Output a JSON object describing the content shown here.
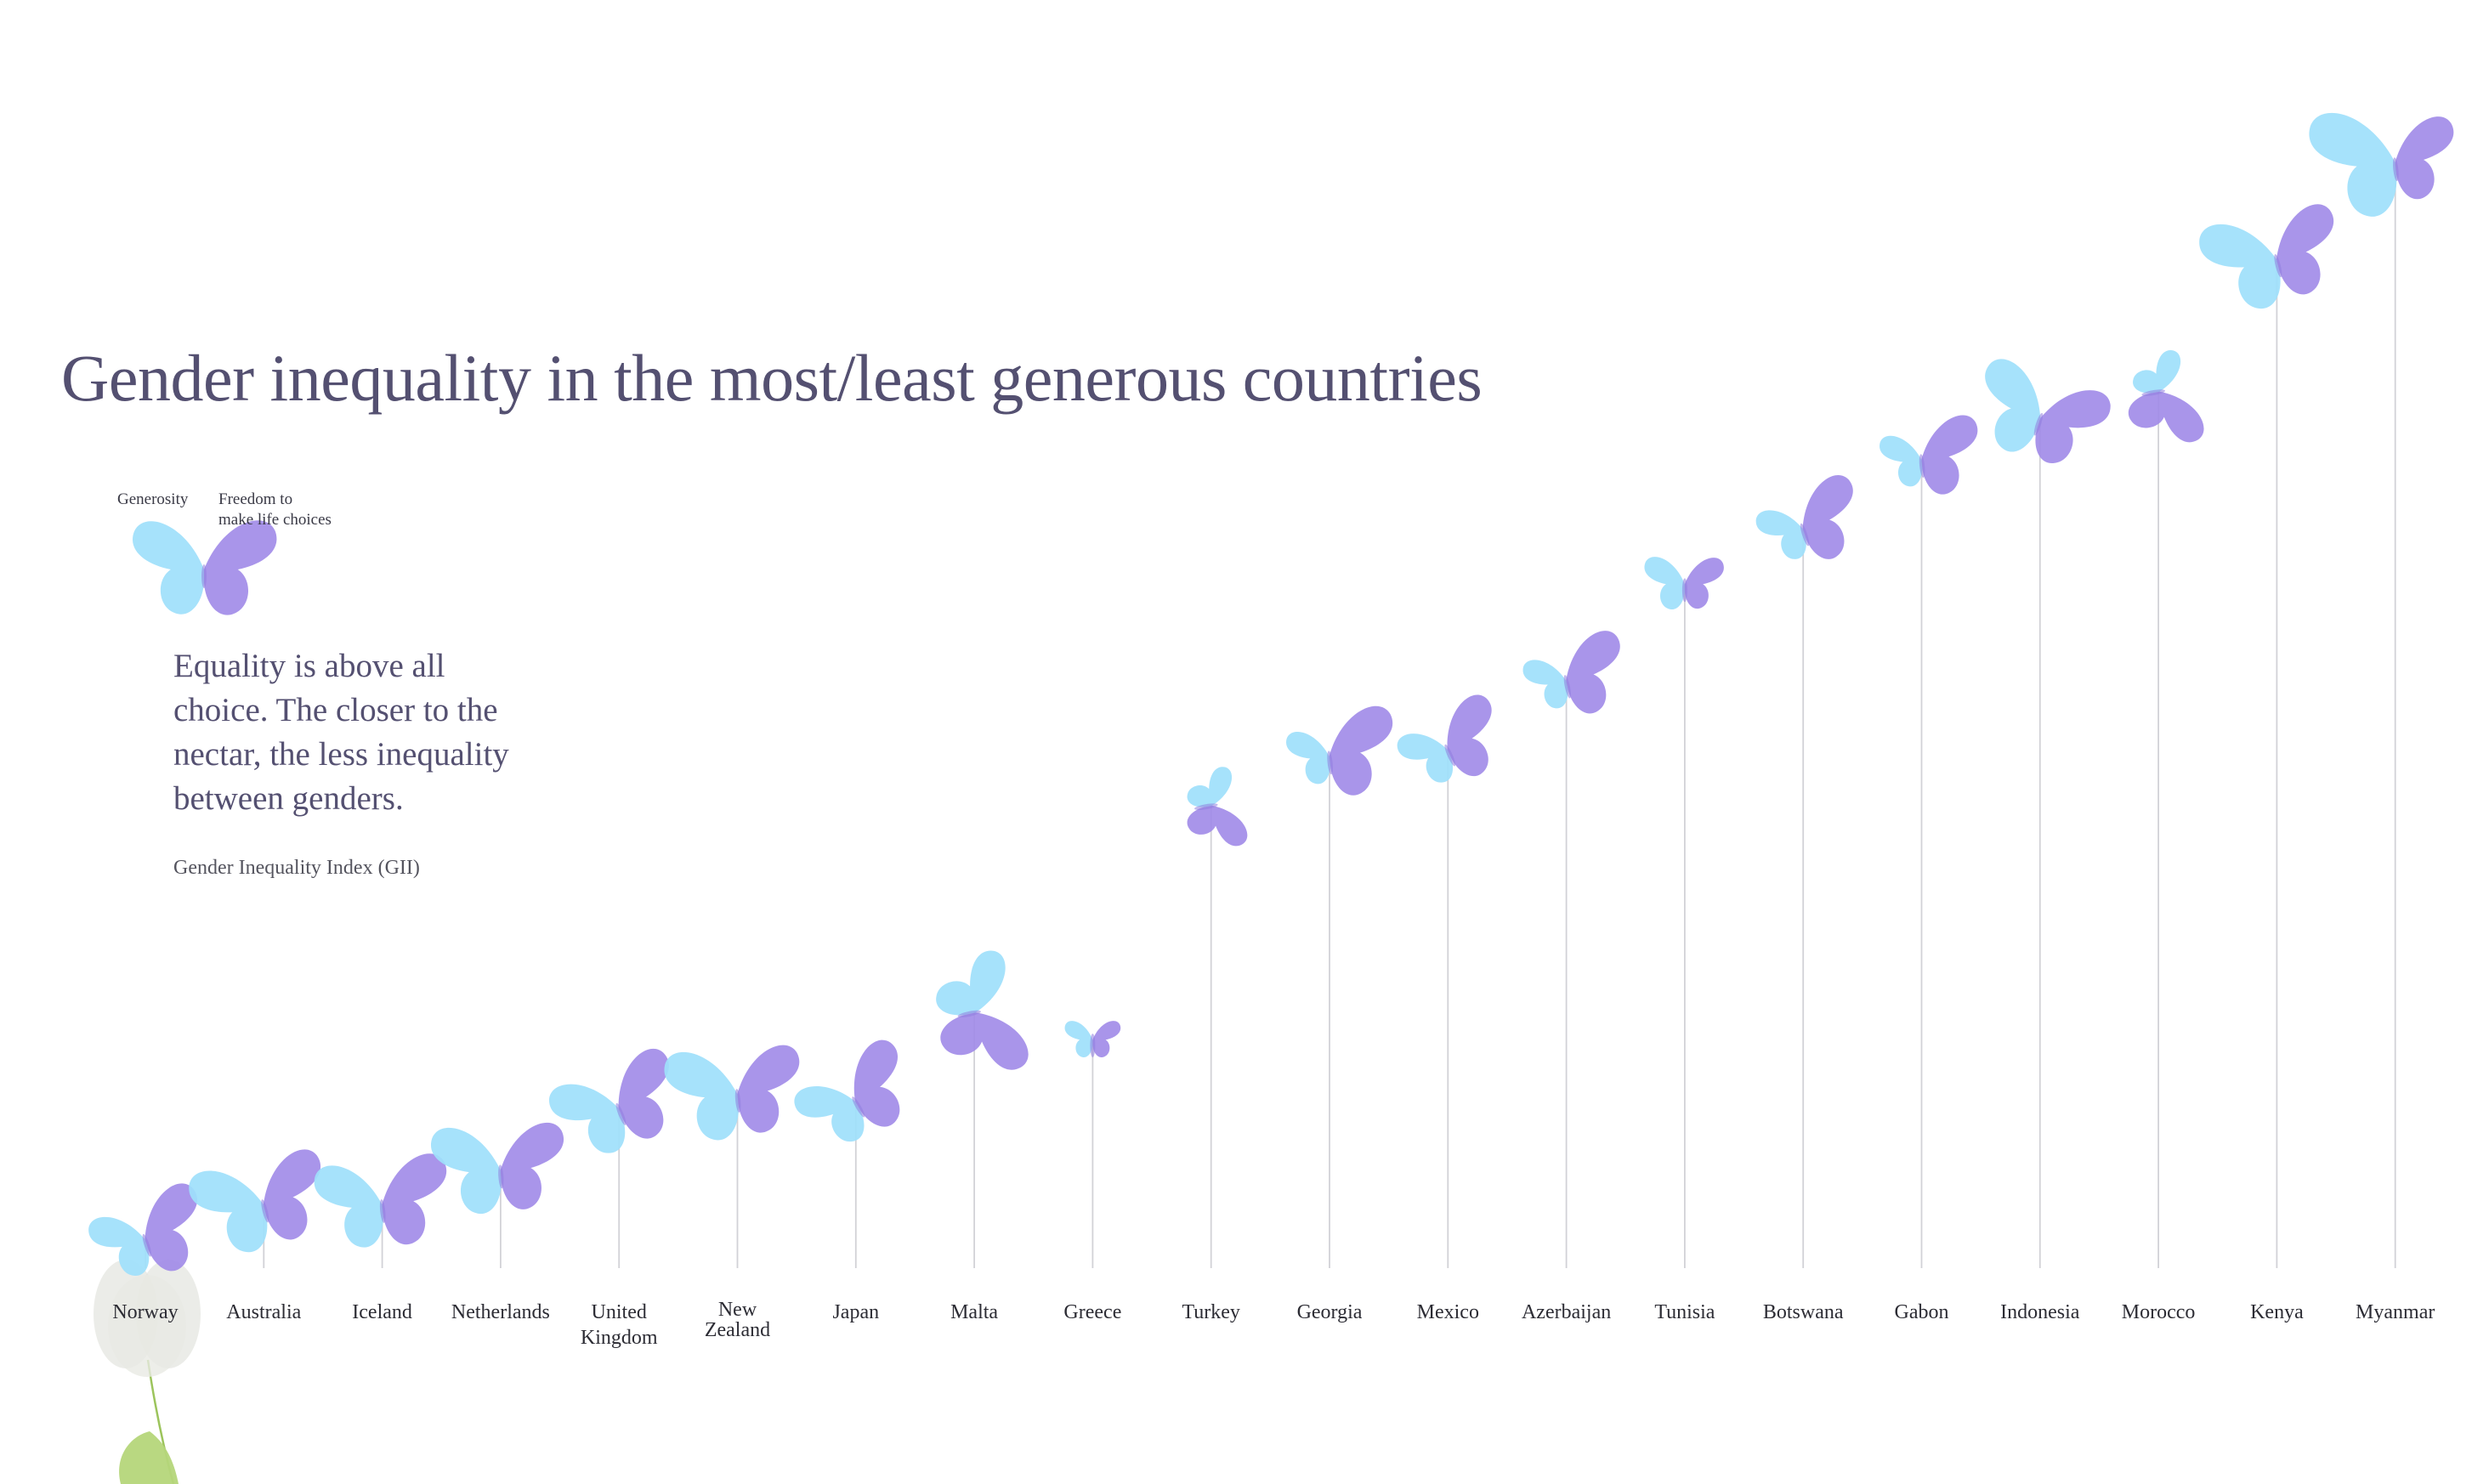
{
  "title": "Gender inequality in the most/least generous countries",
  "legend": {
    "generosity": "Generosity",
    "freedom_line1": "Freedom to",
    "freedom_line2": "make life choices"
  },
  "subtitle": "Equality is above all choice. The closer to the nectar, the less inequality between genders.",
  "gii_label": "Gender Inequality Index (GII)",
  "colors": {
    "generosity": "#9ee0fb",
    "freedom": "#a08ae8",
    "stem": "#d2d2d7",
    "title": "#545071",
    "leaf": "#b5d67a"
  },
  "chart_data": {
    "type": "scatter",
    "encoding": "y = Gender Inequality Index (higher = more inequality); left wing size = Generosity; right wing size = Freedom to make life choices (relative 0-1 estimates)",
    "countries": [
      "Norway",
      "Australia",
      "Iceland",
      "Netherlands",
      "United Kingdom",
      "New Zealand",
      "Japan",
      "Malta",
      "Greece",
      "Turkey",
      "Georgia",
      "Mexico",
      "Azerbaijan",
      "Tunisia",
      "Botswana",
      "Gabon",
      "Indonesia",
      "Morocco",
      "Kenya",
      "Myanmar"
    ],
    "gii": [
      0.04,
      0.09,
      0.09,
      0.14,
      0.23,
      0.25,
      0.24,
      0.37,
      0.33,
      0.67,
      0.74,
      0.75,
      0.85,
      0.99,
      1.07,
      1.17,
      1.23,
      1.27,
      1.46,
      1.6
    ],
    "generosity": [
      0.5,
      0.78,
      0.72,
      0.76,
      0.68,
      0.8,
      0.55,
      0.6,
      0.12,
      0.26,
      0.34,
      0.4,
      0.32,
      0.32,
      0.36,
      0.32,
      0.74,
      0.3,
      0.82,
      1.0
    ],
    "freedom": [
      0.68,
      0.72,
      0.76,
      0.72,
      0.7,
      0.72,
      0.66,
      0.7,
      0.12,
      0.38,
      0.74,
      0.6,
      0.64,
      0.3,
      0.64,
      0.62,
      0.7,
      0.56,
      0.72,
      0.66
    ],
    "labels": [
      [
        "Norway"
      ],
      [
        "Australia"
      ],
      [
        "Iceland"
      ],
      [
        "Netherlands"
      ],
      [
        "United",
        "Kingdom"
      ],
      [
        "New",
        "Zealand"
      ],
      [
        "Japan"
      ],
      [
        "Malta"
      ],
      [
        "Greece"
      ],
      [
        "Turkey"
      ],
      [
        "Georgia"
      ],
      [
        "Mexico"
      ],
      [
        "Azerbaijan"
      ],
      [
        "Tunisia"
      ],
      [
        "Botswana"
      ],
      [
        "Gabon"
      ],
      [
        "Indonesia"
      ],
      [
        "Morocco"
      ],
      [
        "Kenya"
      ],
      [
        "Myanmar"
      ]
    ],
    "small_label_countries": [
      "New Zealand"
    ],
    "ylabel": "Gender Inequality Index (GII)",
    "ylim": [
      0,
      1.7
    ]
  }
}
